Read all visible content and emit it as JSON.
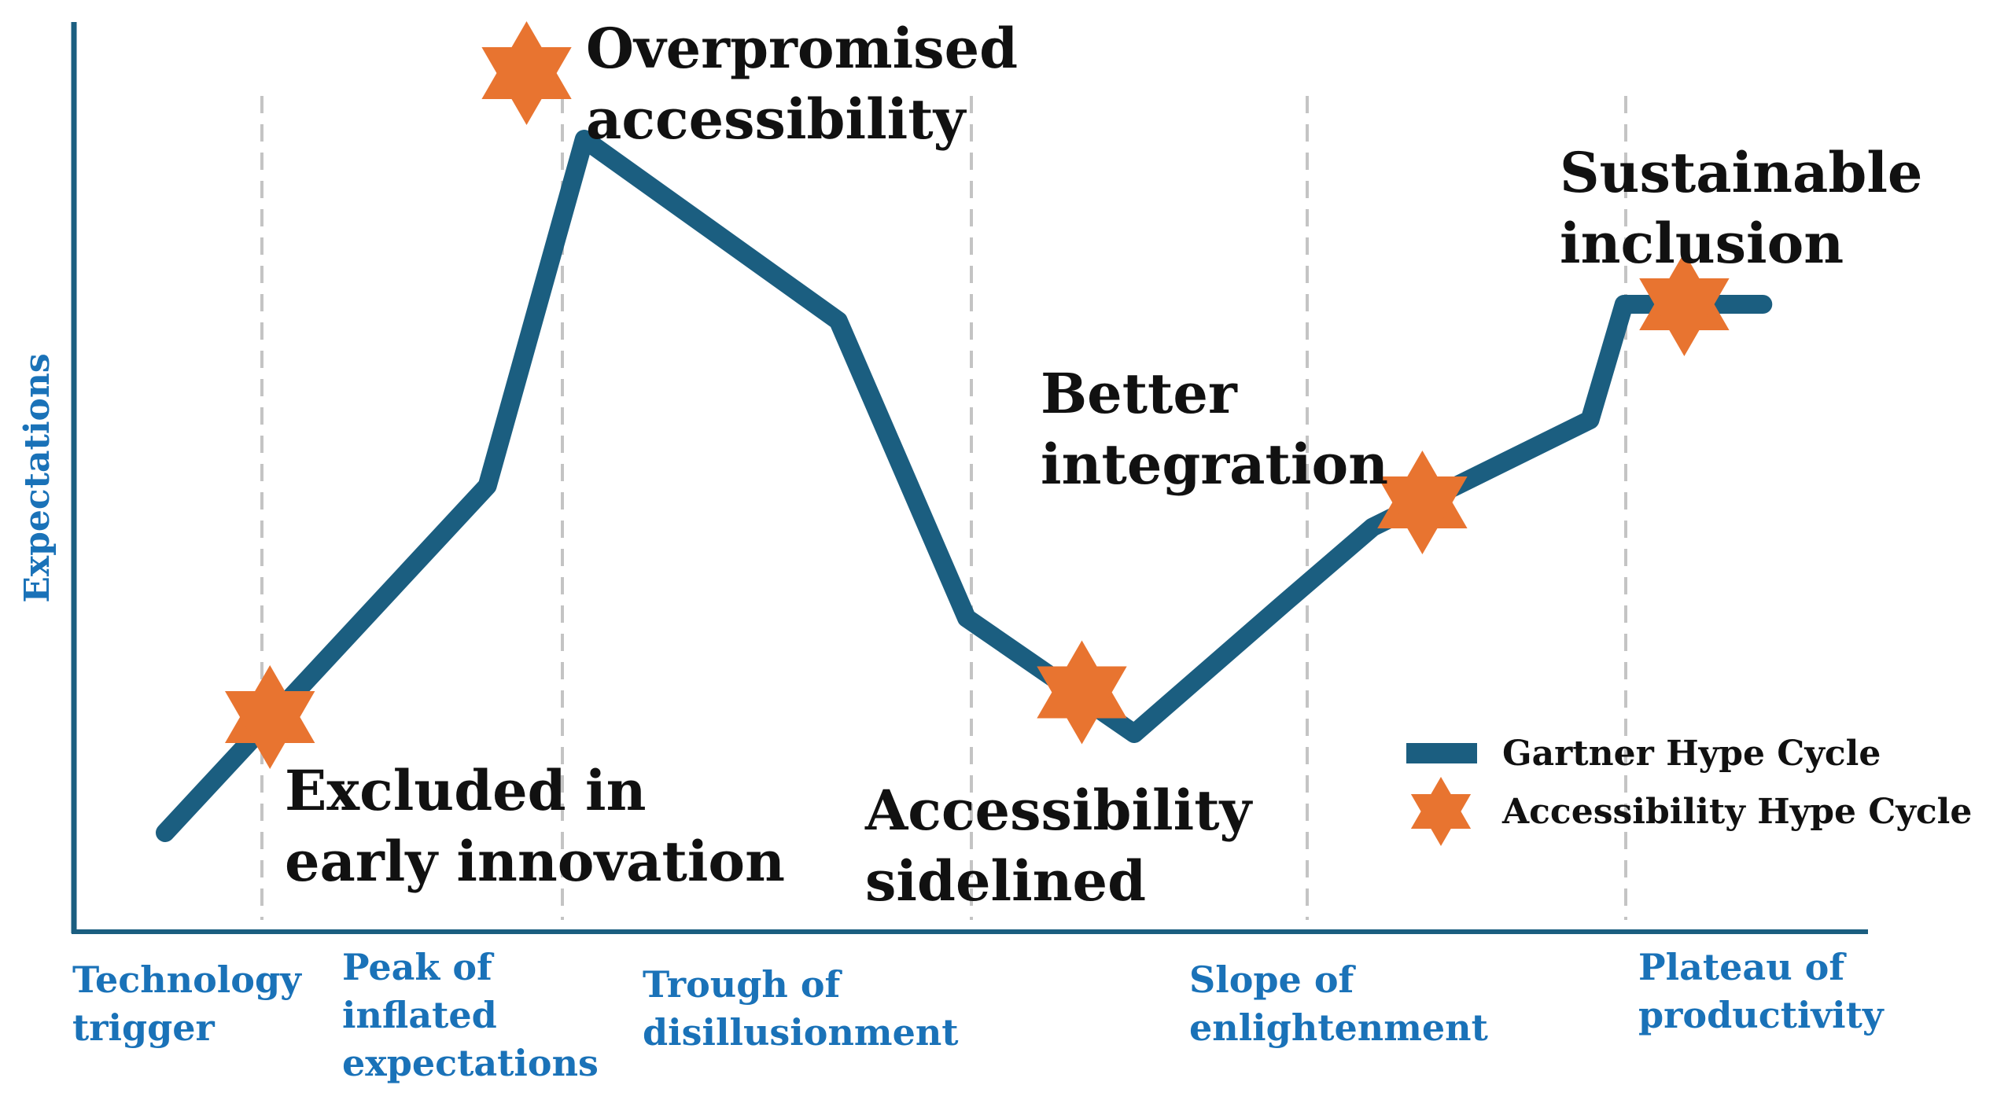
{
  "chart_data": {
    "type": "line",
    "title": "",
    "xlabel": "",
    "ylabel": "Expectations",
    "phases": [
      [
        "Technology",
        "trigger"
      ],
      [
        "Peak of",
        "inflated",
        "expectations"
      ],
      [
        "Trough of",
        "disillusionment"
      ],
      [
        "Slope of",
        "enlightenment"
      ],
      [
        "Plateau of",
        "productivity"
      ]
    ],
    "series": [
      {
        "name": "Gartner Hype Cycle",
        "type": "line",
        "color": "#1b5e80",
        "x": [
          0.0,
          1.23,
          1.6,
          2.57,
          3.06,
          3.7,
          4.28,
          4.61,
          5.44,
          5.57,
          6.1
        ],
        "y": [
          0.08,
          0.5,
          0.92,
          0.7,
          0.34,
          0.2,
          0.36,
          0.45,
          0.58,
          0.72,
          0.72
        ]
      },
      {
        "name": "Accessibility Hype Cycle",
        "type": "scatter",
        "marker": "star",
        "color": "#e87430",
        "points": [
          {
            "x": 0.4,
            "y": 0.22,
            "label": [
              "Excluded in",
              "early innovation"
            ]
          },
          {
            "x": 1.38,
            "y": 1.0,
            "label": [
              "Overpromised",
              "accessibility"
            ]
          },
          {
            "x": 3.5,
            "y": 0.25,
            "label": [
              "Accessibility",
              "sidelined"
            ]
          },
          {
            "x": 4.8,
            "y": 0.48,
            "label": [
              "Better",
              "integration"
            ]
          },
          {
            "x": 5.8,
            "y": 0.72,
            "label": [
              "Sustainable",
              "inclusion"
            ]
          }
        ]
      }
    ],
    "legend": {
      "position": "bottom-right",
      "entries": [
        "Gartner Hype Cycle",
        "Accessibility Hype Cycle"
      ]
    },
    "grid": "vertical dashed phase separators",
    "colors": {
      "axis": "#1b5e80",
      "label": "#1a72b8",
      "separator": "#c4c4c4",
      "annotation": "#111111"
    }
  }
}
